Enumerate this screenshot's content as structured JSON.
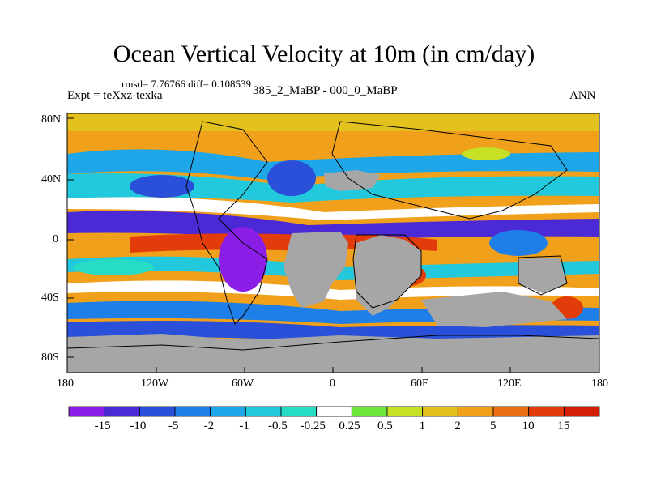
{
  "title": "Ocean Vertical Velocity at 10m (in cm/day)",
  "stats": "rmsd= 7.76766 diff= 0.108539",
  "experiment": "Expt = teXxz-texka",
  "experiment_name": "385_2_MaBP - 000_0_MaBP",
  "season": "ANN",
  "lat_labels": [
    "80N",
    "40N",
    "0",
    "40S",
    "80S"
  ],
  "lon_labels": [
    "180",
    "120W",
    "60W",
    "0",
    "60E",
    "120E",
    "180"
  ],
  "colorbar": {
    "labels": [
      "-15",
      "-10",
      "-5",
      "-2",
      "-1",
      "-0.5",
      "-0.25",
      "0.25",
      "0.5",
      "1",
      "2",
      "5",
      "10",
      "15"
    ],
    "colors": [
      "#8a1ee6",
      "#4b2ad6",
      "#2a4fd8",
      "#1e7fe8",
      "#1ea6e8",
      "#22c8dc",
      "#26dcc4",
      "#ffffff",
      "#6ee83a",
      "#c6e026",
      "#e4c21e",
      "#f0a01a",
      "#ea6e12",
      "#e23c0a",
      "#d41e08"
    ]
  },
  "palette": {
    "land": "#a6a6a6"
  }
}
